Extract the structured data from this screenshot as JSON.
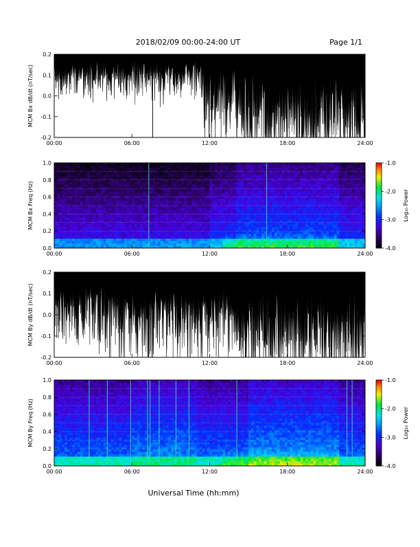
{
  "header": {
    "title": "2018/02/09  00:00-24:00 UT",
    "page": "Page 1/1"
  },
  "footer": {
    "xlabel": "Universal Time (hh:mm)"
  },
  "chart_data": [
    {
      "type": "line",
      "ylabel": "MCM Bx dB/dt (nT/sec)",
      "xlim": [
        0,
        24
      ],
      "ylim": [
        -0.2,
        0.2
      ],
      "x_ticks": [
        "00:00",
        "06:00",
        "12:00",
        "18:00",
        "24:00"
      ],
      "y_ticks": [
        "0.2",
        "0.1",
        "0.0",
        "-0.1",
        "-0.2"
      ],
      "series_color": "#000000",
      "spikes": [
        {
          "x": 7.6,
          "y": -0.2
        },
        {
          "x": 15.4,
          "y": -0.1
        },
        {
          "x": 16.4,
          "y": -0.07
        },
        {
          "x": 16.9,
          "y": -0.08
        },
        {
          "x": 18.2,
          "y": -0.06
        },
        {
          "x": 18.9,
          "y": -0.2
        },
        {
          "x": 20.4,
          "y": -0.08
        },
        {
          "x": 21.6,
          "y": -0.13
        }
      ]
    },
    {
      "type": "heatmap",
      "ylabel": "MCM Bx Freq (Hz)",
      "xlim": [
        0,
        24
      ],
      "ylim": [
        0,
        1.0
      ],
      "x_ticks": [
        "00:00",
        "06:00",
        "12:00",
        "18:00",
        "24:00"
      ],
      "y_ticks": [
        "1.0",
        "0.8",
        "0.6",
        "0.4",
        "0.2",
        "0.0"
      ],
      "colorbar": {
        "label": "Log₁₀ Power",
        "range": [
          -4.0,
          -1.0
        ],
        "ticks": [
          "-1.0",
          "-2.0",
          "-3.0",
          "-4.0"
        ]
      },
      "vertical_lines": [
        7.3,
        16.4
      ]
    },
    {
      "type": "line",
      "ylabel": "MCM By dB/dt (nT/sec)",
      "xlim": [
        0,
        24
      ],
      "ylim": [
        -0.2,
        0.2
      ],
      "x_ticks": [
        "00:00",
        "06:00",
        "12:00",
        "18:00",
        "24:00"
      ],
      "y_ticks": [
        "0.2",
        "0.1",
        "0.0",
        "-0.1",
        "-0.2"
      ],
      "series_color": "#000000",
      "spikes": [
        {
          "x": 7.3,
          "y": -0.2
        },
        {
          "x": 16.4,
          "y": -0.14
        },
        {
          "x": 17.6,
          "y": -0.14
        },
        {
          "x": 17.9,
          "y": -0.15
        },
        {
          "x": 18.3,
          "y": -0.12
        },
        {
          "x": 22.5,
          "y": -0.2
        }
      ]
    },
    {
      "type": "heatmap",
      "ylabel": "MCM By Freq (Hz)",
      "xlim": [
        0,
        24
      ],
      "ylim": [
        0,
        1.0
      ],
      "x_ticks": [
        "00:00",
        "06:00",
        "12:00",
        "18:00",
        "24:00"
      ],
      "y_ticks": [
        "1.0",
        "0.8",
        "0.6",
        "0.4",
        "0.2",
        "0.0"
      ],
      "colorbar": {
        "label": "Log₁₀ Power",
        "range": [
          -4.0,
          -1.0
        ],
        "ticks": [
          "-1.0",
          "-2.0",
          "-3.0",
          "-4.0"
        ]
      },
      "vertical_lines": [
        2.7,
        4.1,
        5.9,
        7.2,
        7.4,
        8.1,
        9.4,
        10.4,
        14.1,
        22.6,
        23.0
      ]
    }
  ]
}
